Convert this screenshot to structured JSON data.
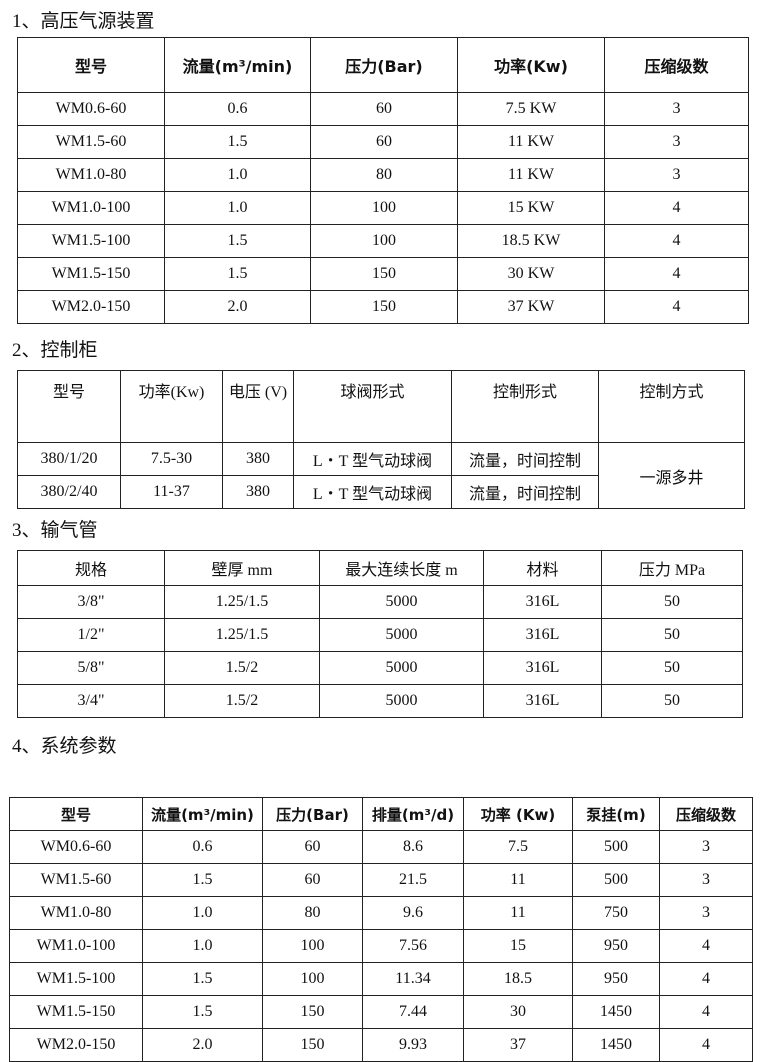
{
  "section1": {
    "title": "1、高压气源装置",
    "headers": [
      "型号",
      "流量(m³/min)",
      "压力(Bar)",
      "功率(Kw)",
      "压缩级数"
    ],
    "rows": [
      [
        "WM0.6-60",
        "0.6",
        "60",
        "7.5 KW",
        "3"
      ],
      [
        "WM1.5-60",
        "1.5",
        "60",
        "11 KW",
        "3"
      ],
      [
        "WM1.0-80",
        "1.0",
        "80",
        "11 KW",
        "3"
      ],
      [
        "WM1.0-100",
        "1.0",
        "100",
        "15 KW",
        "4"
      ],
      [
        "WM1.5-100",
        "1.5",
        "100",
        "18.5 KW",
        "4"
      ],
      [
        "WM1.5-150",
        "1.5",
        "150",
        "30 KW",
        "4"
      ],
      [
        "WM2.0-150",
        "2.0",
        "150",
        "37 KW",
        "4"
      ]
    ]
  },
  "section2": {
    "title": "2、控制柜",
    "headers": [
      "型号",
      "功率(Kw)",
      "电压 (V)",
      "球阀形式",
      "控制形式",
      "控制方式"
    ],
    "rows": [
      [
        "380/1/20",
        "7.5-30",
        "380",
        "L・T 型气动球阀",
        "流量，时间控制"
      ],
      [
        "380/2/40",
        "11-37",
        "380",
        "L・T 型气动球阀",
        "流量，时间控制"
      ]
    ],
    "merged_control_mode": "一源多井"
  },
  "section3": {
    "title": "3、输气管",
    "headers": [
      "规格",
      "壁厚 mm",
      "最大连续长度 m",
      "材料",
      "压力 MPa"
    ],
    "rows": [
      [
        "3/8\"",
        "1.25/1.5",
        "5000",
        "316L",
        "50"
      ],
      [
        "1/2\"",
        "1.25/1.5",
        "5000",
        "316L",
        "50"
      ],
      [
        "5/8\"",
        "1.5/2",
        "5000",
        "316L",
        "50"
      ],
      [
        "3/4\"",
        "1.5/2",
        "5000",
        "316L",
        "50"
      ]
    ]
  },
  "section4": {
    "title": "4、系统参数",
    "headers": [
      "型号",
      "流量(m³/min)",
      "压力(Bar)",
      "排量(m³/d)",
      "功率 (Kw)",
      "泵挂(m)",
      "压缩级数"
    ],
    "rows": [
      [
        "WM0.6-60",
        "0.6",
        "60",
        "8.6",
        "7.5",
        "500",
        "3"
      ],
      [
        "WM1.5-60",
        "1.5",
        "60",
        "21.5",
        "11",
        "500",
        "3"
      ],
      [
        "WM1.0-80",
        "1.0",
        "80",
        "9.6",
        "11",
        "750",
        "3"
      ],
      [
        "WM1.0-100",
        "1.0",
        "100",
        "7.56",
        "15",
        "950",
        "4"
      ],
      [
        "WM1.5-100",
        "1.5",
        "100",
        "11.34",
        "18.5",
        "950",
        "4"
      ],
      [
        "WM1.5-150",
        "1.5",
        "150",
        "7.44",
        "30",
        "1450",
        "4"
      ],
      [
        "WM2.0-150",
        "2.0",
        "150",
        "9.93",
        "37",
        "1450",
        "4"
      ]
    ]
  }
}
